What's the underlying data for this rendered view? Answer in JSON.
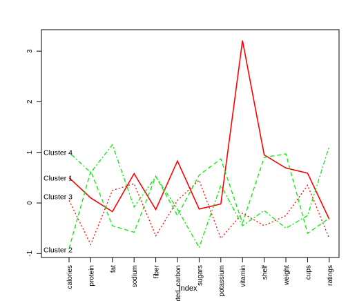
{
  "chart_data": {
    "type": "line",
    "title": "",
    "xlabel": "Index",
    "ylabel": "",
    "ylim": [
      -1,
      3.3
    ],
    "yticks": [
      -1,
      0,
      1,
      2,
      3
    ],
    "categories": [
      "calories",
      "protein",
      "fat",
      "sodium",
      "fiber",
      "rated_carbon",
      "sugars",
      "potassium",
      "vitamin",
      "shelf",
      "weight",
      "cups",
      "ratings"
    ],
    "grid": false,
    "legend": "none",
    "series": [
      {
        "name": "Cluster 1",
        "color": "#ff0000",
        "dash": "solid",
        "values": [
          0.5,
          0.1,
          -0.17,
          0.58,
          -0.13,
          0.83,
          -0.12,
          -0.02,
          3.21,
          0.95,
          0.69,
          0.59,
          -0.32
        ]
      },
      {
        "name": "Cluster 2",
        "color": "#00ee00",
        "dash": "dashed",
        "values": [
          -0.9,
          0.63,
          -0.45,
          -0.58,
          0.53,
          -0.25,
          0.55,
          0.87,
          -0.4,
          0.9,
          0.97,
          -0.6,
          -0.3
        ]
      },
      {
        "name": "Cluster 3",
        "color": "#ff0000",
        "dash": "dotted",
        "values": [
          0.05,
          -0.82,
          0.25,
          0.38,
          -0.65,
          0.05,
          0.45,
          -0.7,
          -0.2,
          -0.45,
          -0.25,
          0.35,
          -0.7
        ]
      },
      {
        "name": "Cluster 4",
        "color": "#00ee00",
        "dash": "dotdash",
        "values": [
          1.0,
          0.6,
          1.15,
          -0.08,
          0.52,
          -0.12,
          -0.88,
          0.35,
          -0.45,
          -0.15,
          -0.5,
          -0.25,
          1.12
        ]
      }
    ],
    "annotations": [
      {
        "text": "Cluster 4",
        "y": 1.0
      },
      {
        "text": "Cluster 1",
        "y": 0.5
      },
      {
        "text": "Cluster 3",
        "y": 0.13
      },
      {
        "text": "Cluster 2",
        "y": -0.92
      }
    ]
  }
}
